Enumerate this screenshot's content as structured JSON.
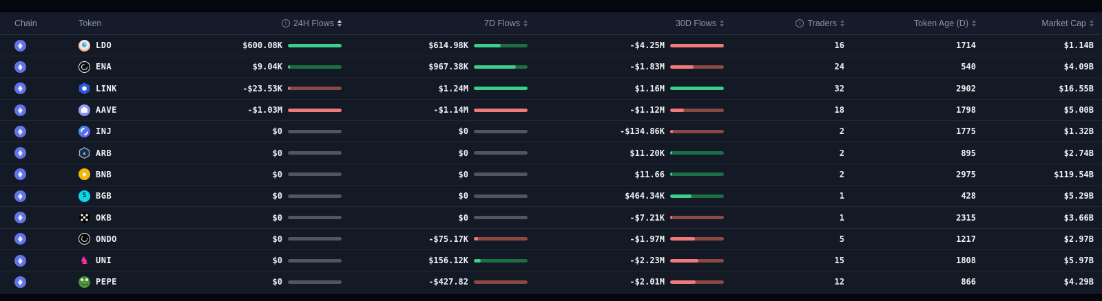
{
  "header": {
    "chain": "Chain",
    "token": "Token",
    "f24": "24H Flows",
    "f7": "7D Flows",
    "f30": "30D Flows",
    "traders": "Traders",
    "age": "Token Age (D)",
    "mcap": "Market Cap",
    "active_sort_column": "24H Flows"
  },
  "colors": {
    "background": "#141a25",
    "top_strip": "#04070d",
    "positive_bright": "#3dcd8a",
    "positive_dim": "#1c6f45",
    "negative_bright": "#f27979",
    "negative_dim": "#8a4944",
    "zero_bar": "#50565f",
    "text_primary": "#eef1f5",
    "text_header": "#8b95a7",
    "chain_icon": "#6274e7"
  },
  "chain_name": "ethereum",
  "rows": [
    {
      "token": "LDO",
      "icon": "ldo",
      "f24": {
        "v": "$600.08K",
        "d": "pos",
        "f": 1.0
      },
      "f7": {
        "v": "$614.98K",
        "d": "pos",
        "f": 0.5
      },
      "f30": {
        "v": "-$4.25M",
        "d": "neg",
        "f": 1.0
      },
      "traders": "16",
      "age": "1714",
      "mcap": "$1.14B"
    },
    {
      "token": "ENA",
      "icon": "ena",
      "f24": {
        "v": "$9.04K",
        "d": "pos",
        "f": 0.04
      },
      "f7": {
        "v": "$967.38K",
        "d": "pos",
        "f": 0.78
      },
      "f30": {
        "v": "-$1.83M",
        "d": "neg",
        "f": 0.43
      },
      "traders": "24",
      "age": "540",
      "mcap": "$4.09B"
    },
    {
      "token": "LINK",
      "icon": "link",
      "f24": {
        "v": "-$23.53K",
        "d": "neg",
        "f": 0.04
      },
      "f7": {
        "v": "$1.24M",
        "d": "pos",
        "f": 1.0
      },
      "f30": {
        "v": "$1.16M",
        "d": "pos",
        "f": 1.0
      },
      "traders": "32",
      "age": "2902",
      "mcap": "$16.55B"
    },
    {
      "token": "AAVE",
      "icon": "aave",
      "f24": {
        "v": "-$1.03M",
        "d": "neg",
        "f": 1.0
      },
      "f7": {
        "v": "-$1.14M",
        "d": "neg",
        "f": 1.0
      },
      "f30": {
        "v": "-$1.12M",
        "d": "neg",
        "f": 0.26
      },
      "traders": "18",
      "age": "1798",
      "mcap": "$5.00B"
    },
    {
      "token": "INJ",
      "icon": "inj",
      "f24": {
        "v": "$0",
        "d": "zero",
        "f": 0
      },
      "f7": {
        "v": "$0",
        "d": "zero",
        "f": 0
      },
      "f30": {
        "v": "-$134.86K",
        "d": "neg",
        "f": 0.05
      },
      "traders": "2",
      "age": "1775",
      "mcap": "$1.32B"
    },
    {
      "token": "ARB",
      "icon": "arb",
      "f24": {
        "v": "$0",
        "d": "zero",
        "f": 0
      },
      "f7": {
        "v": "$0",
        "d": "zero",
        "f": 0
      },
      "f30": {
        "v": "$11.20K",
        "d": "pos",
        "f": 0.03
      },
      "traders": "2",
      "age": "895",
      "mcap": "$2.74B"
    },
    {
      "token": "BNB",
      "icon": "bnb",
      "f24": {
        "v": "$0",
        "d": "zero",
        "f": 0
      },
      "f7": {
        "v": "$0",
        "d": "zero",
        "f": 0
      },
      "f30": {
        "v": "$11.66",
        "d": "pos",
        "f": 0.02
      },
      "traders": "2",
      "age": "2975",
      "mcap": "$119.54B"
    },
    {
      "token": "BGB",
      "icon": "bgb",
      "f24": {
        "v": "$0",
        "d": "zero",
        "f": 0
      },
      "f7": {
        "v": "$0",
        "d": "zero",
        "f": 0
      },
      "f30": {
        "v": "$464.34K",
        "d": "pos",
        "f": 0.4
      },
      "traders": "1",
      "age": "428",
      "mcap": "$5.29B"
    },
    {
      "token": "OKB",
      "icon": "okb",
      "f24": {
        "v": "$0",
        "d": "zero",
        "f": 0
      },
      "f7": {
        "v": "$0",
        "d": "zero",
        "f": 0
      },
      "f30": {
        "v": "-$7.21K",
        "d": "neg",
        "f": 0.03
      },
      "traders": "1",
      "age": "2315",
      "mcap": "$3.66B"
    },
    {
      "token": "ONDO",
      "icon": "ondo",
      "f24": {
        "v": "$0",
        "d": "zero",
        "f": 0
      },
      "f7": {
        "v": "-$75.17K",
        "d": "neg",
        "f": 0.08
      },
      "f30": {
        "v": "-$1.97M",
        "d": "neg",
        "f": 0.46
      },
      "traders": "5",
      "age": "1217",
      "mcap": "$2.97B"
    },
    {
      "token": "UNI",
      "icon": "uni",
      "f24": {
        "v": "$0",
        "d": "zero",
        "f": 0
      },
      "f7": {
        "v": "$156.12K",
        "d": "pos",
        "f": 0.13
      },
      "f30": {
        "v": "-$2.23M",
        "d": "neg",
        "f": 0.52
      },
      "traders": "15",
      "age": "1808",
      "mcap": "$5.97B"
    },
    {
      "token": "PEPE",
      "icon": "pepe",
      "f24": {
        "v": "$0",
        "d": "zero",
        "f": 0
      },
      "f7": {
        "v": "-$427.82",
        "d": "neg",
        "f": 0
      },
      "f30": {
        "v": "-$2.01M",
        "d": "neg",
        "f": 0.47
      },
      "traders": "12",
      "age": "866",
      "mcap": "$4.29B"
    }
  ]
}
